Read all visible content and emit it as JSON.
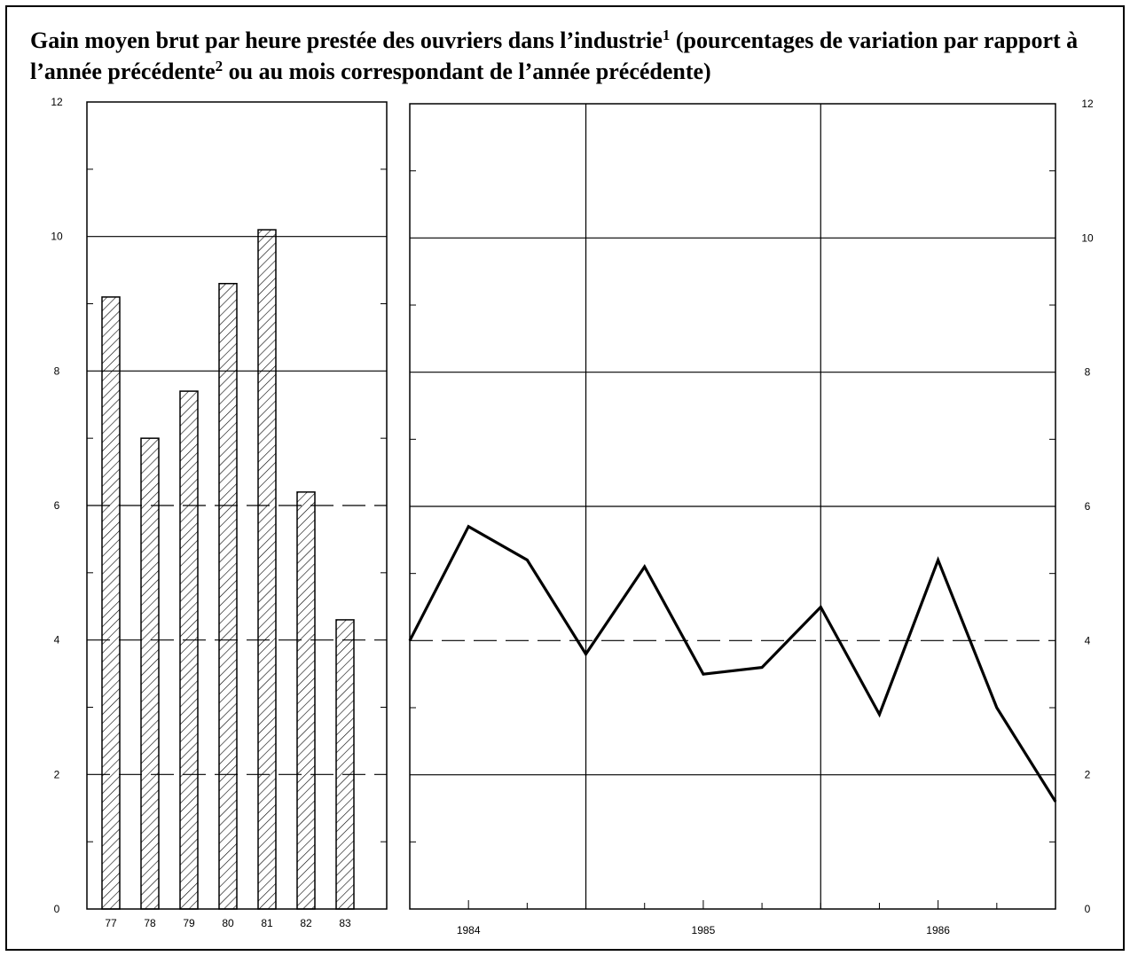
{
  "title": {
    "part1": "Gain moyen brut par heure prestée des ouvriers dans l’industrie",
    "note1": "1",
    "part2": "(pourcentages de variation par rapport à l’année précédente",
    "note2": "2",
    "part3": "ou au mois correspondant de l’année précédente)"
  },
  "chart_data": [
    {
      "type": "bar",
      "categories": [
        "77",
        "78",
        "79",
        "80",
        "81",
        "82",
        "83"
      ],
      "values": [
        9.1,
        7.0,
        7.7,
        9.3,
        10.1,
        6.2,
        4.3
      ],
      "ylim": [
        0,
        12
      ],
      "yticks": [
        "0",
        "2",
        "4",
        "6",
        "8",
        "10",
        "12"
      ],
      "bar_pattern": "diagonal-hatch",
      "grid": "horizontal lines at even values (dashed at 2, 4, 6)"
    },
    {
      "type": "line",
      "x_labels": [
        "1984",
        "1985",
        "1986"
      ],
      "x_range": [
        1983.75,
        1986.5
      ],
      "series": [
        {
          "x": [
            "1983-10",
            "1984-01",
            "1984-04",
            "1984-07",
            "1984-10",
            "1985-01",
            "1985-04",
            "1985-07",
            "1985-10",
            "1986-01",
            "1986-04",
            "1986-07"
          ],
          "values": [
            4.0,
            5.7,
            5.2,
            3.8,
            5.1,
            3.5,
            3.6,
            4.5,
            2.9,
            5.2,
            3.0,
            1.6
          ]
        }
      ],
      "ylim": [
        0,
        12
      ],
      "yticks": [
        "0",
        "2",
        "4",
        "6",
        "8",
        "10",
        "12"
      ],
      "grid": "horizontal lines at even values (dashed at 4), vertical lines at mid-1984 and mid-1985"
    }
  ]
}
